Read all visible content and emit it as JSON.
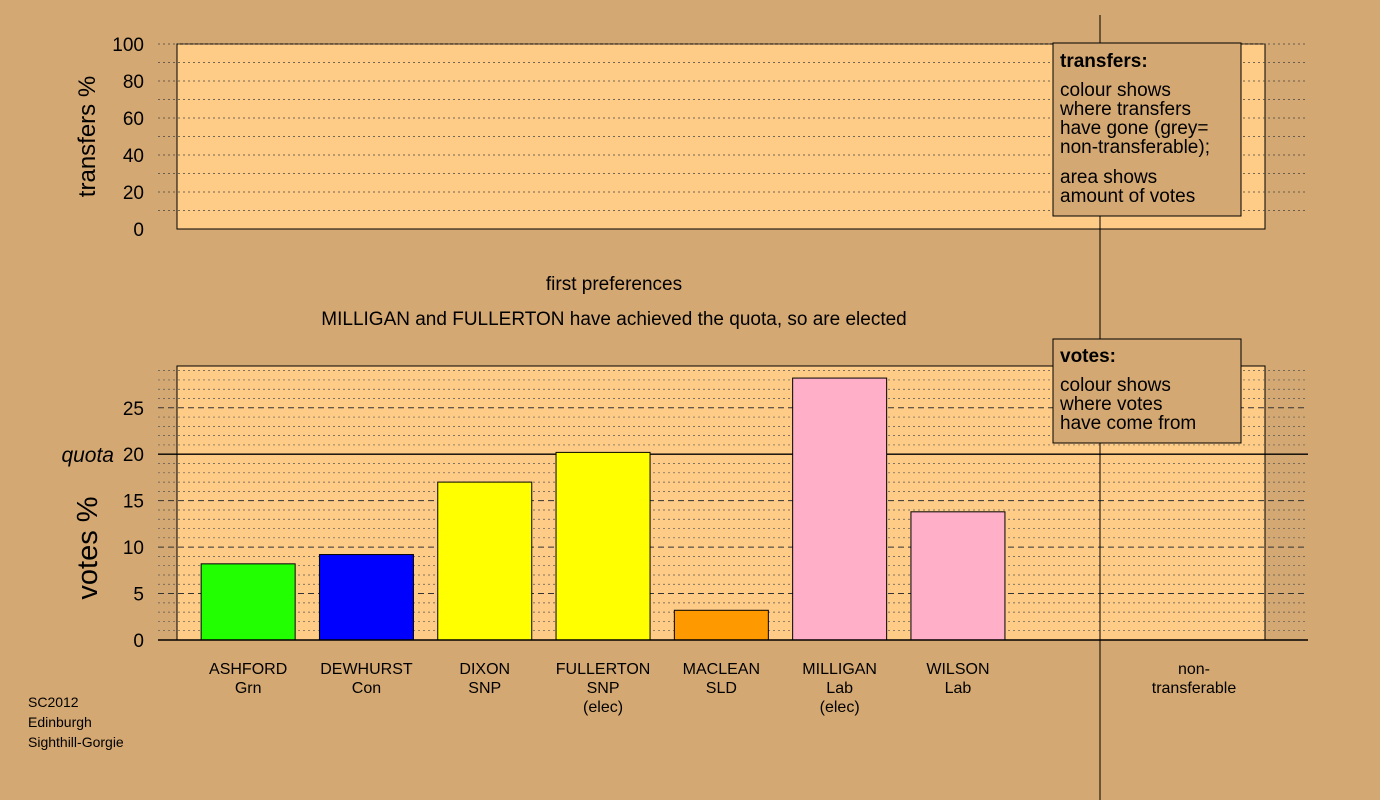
{
  "colors": {
    "background": "#d4a872",
    "plot_area": "#ffcc88",
    "Grn": "#22ff00",
    "Con": "#0000ff",
    "SNP": "#ffff00",
    "SLD": "#ff9900",
    "Lab": "#ffb0c8"
  },
  "round_title": "first preferences",
  "status_message": "MILLIGAN and FULLERTON have achieved the quota, so are elected",
  "footer": {
    "line1": "SC2012",
    "line2": "Edinburgh",
    "line3": "Sighthill-Gorgie"
  },
  "transfers_legend": {
    "title": "transfers:",
    "lines": [
      "colour shows",
      "where transfers",
      "have gone (grey=",
      "non-transferable);"
    ],
    "lines2": [
      "area shows",
      "amount of votes"
    ]
  },
  "votes_legend": {
    "title": "votes:",
    "lines": [
      "colour shows",
      "where votes",
      "have come from"
    ]
  },
  "chart_data": [
    {
      "type": "bar",
      "name": "transfers",
      "ylabel": "transfers %",
      "ylim": [
        0,
        100
      ],
      "yticks": [
        0,
        20,
        40,
        60,
        80,
        100
      ],
      "values": []
    },
    {
      "type": "bar",
      "name": "votes",
      "ylabel": "votes %",
      "ylim": [
        0,
        29.5
      ],
      "yticks": [
        0,
        5,
        10,
        15,
        20,
        25
      ],
      "quota": 20,
      "quota_label": "quota",
      "categories": [
        {
          "name": "ASHFORD",
          "party": "Grn",
          "note": "",
          "value": 8.2,
          "color": "#22ff00"
        },
        {
          "name": "DEWHURST",
          "party": "Con",
          "note": "",
          "value": 9.2,
          "color": "#0000ff"
        },
        {
          "name": "DIXON",
          "party": "SNP",
          "note": "",
          "value": 17.0,
          "color": "#ffff00"
        },
        {
          "name": "FULLERTON",
          "party": "SNP",
          "note": "(elec)",
          "value": 20.2,
          "color": "#ffff00"
        },
        {
          "name": "MACLEAN",
          "party": "SLD",
          "note": "",
          "value": 3.2,
          "color": "#ff9900"
        },
        {
          "name": "MILLIGAN",
          "party": "Lab",
          "note": "(elec)",
          "value": 28.2,
          "color": "#ffb0c8"
        },
        {
          "name": "WILSON",
          "party": "Lab",
          "note": "",
          "value": 13.8,
          "color": "#ffb0c8"
        }
      ],
      "non_transferable": {
        "label_line1": "non-",
        "label_line2": "transferable",
        "value": 0
      }
    }
  ]
}
